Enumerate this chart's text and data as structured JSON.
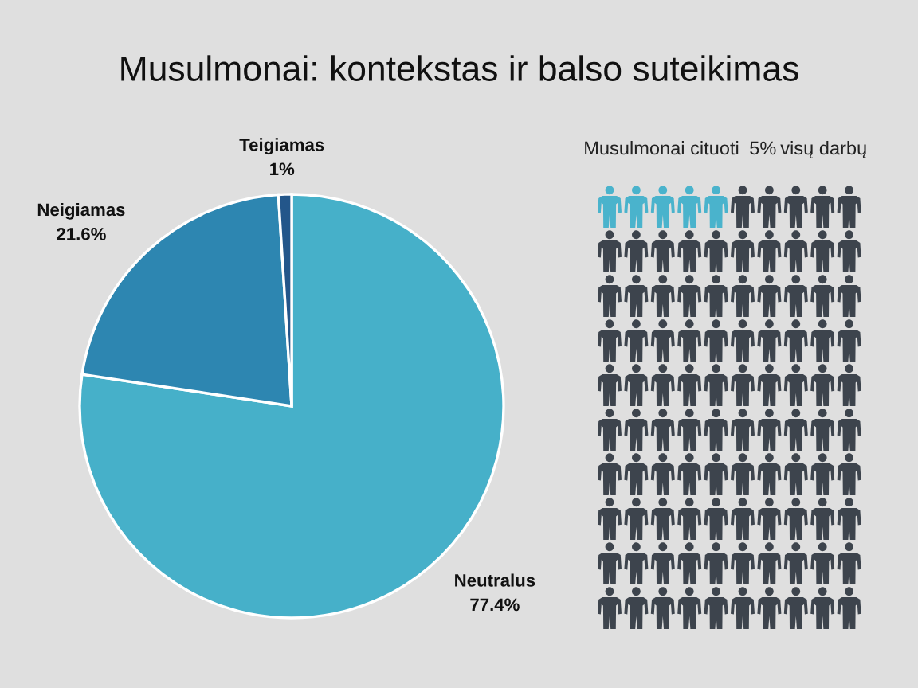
{
  "chart_data": [
    {
      "type": "pie",
      "title": "Musulmonai: kontekstas ir balso suteikimas",
      "categories": [
        "Neutralus",
        "Neigiamas",
        "Teigiamas"
      ],
      "values": [
        77.4,
        21.6,
        1
      ],
      "value_labels": [
        "77.4%",
        "21.6%",
        "1%"
      ],
      "colors": [
        "#46b0c9",
        "#2d86b1",
        "#23568a"
      ]
    },
    {
      "type": "other",
      "title": "Musulmonai cituoti",
      "values": [
        5
      ],
      "value_labels": [
        "5%"
      ],
      "annotations": [
        "visų darbų"
      ],
      "colors": [
        "#4ab3cc"
      ]
    }
  ]
}
